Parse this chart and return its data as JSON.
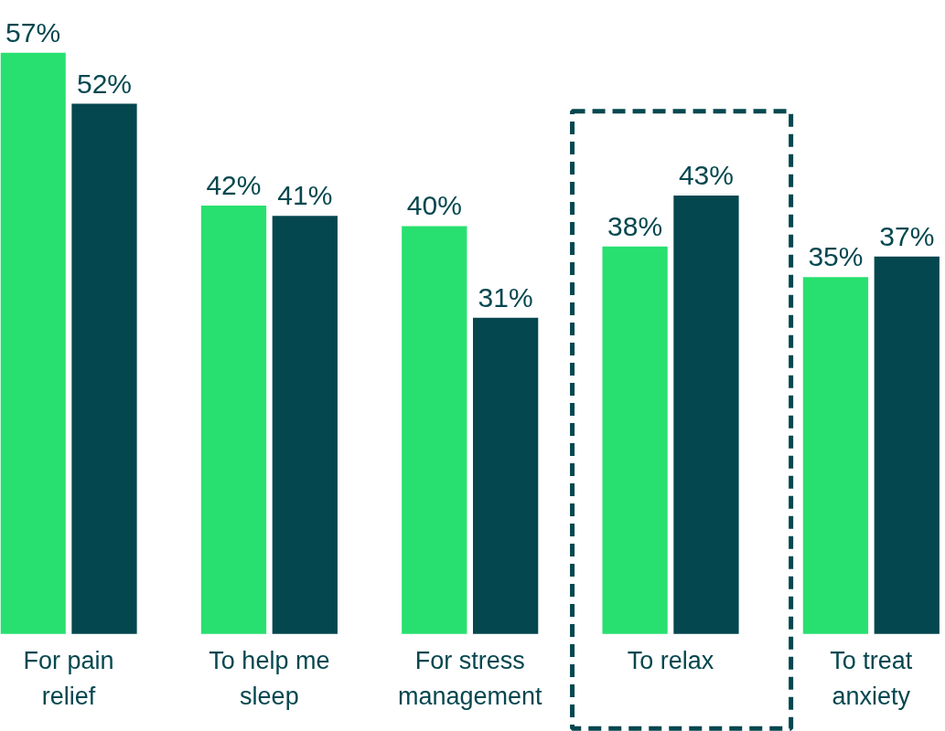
{
  "chart_data": {
    "type": "bar",
    "categories": [
      "For pain relief",
      "To help me sleep",
      "For stress management",
      "To relax",
      "To treat anxiety"
    ],
    "series": [
      {
        "color": "#27e06f",
        "values": [
          57,
          42,
          40,
          38,
          35
        ],
        "value_labels": [
          "57%",
          "42%",
          "40%",
          "38%",
          "35%"
        ]
      },
      {
        "color": "#05474f",
        "values": [
          52,
          41,
          31,
          43,
          37
        ],
        "value_labels": [
          "52%",
          "41%",
          "31%",
          "43%",
          "37%"
        ]
      }
    ]
  }
}
